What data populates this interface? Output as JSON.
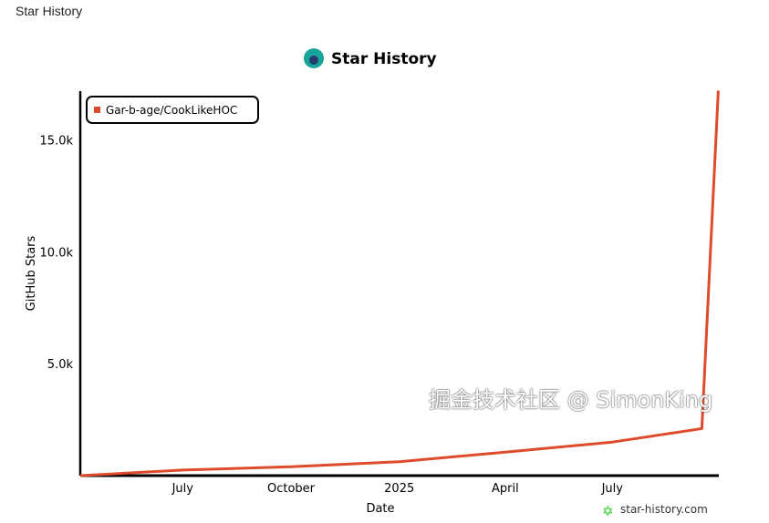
{
  "page": {
    "title": "Star History"
  },
  "watermark": "掘金技术社区 @ SimonKing",
  "brand": "star-history.com",
  "chart_data": {
    "type": "line",
    "title": "Star History",
    "xlabel": "Date",
    "ylabel": "GitHub Stars",
    "x_ticks": [
      "July",
      "October",
      "2025",
      "April",
      "July"
    ],
    "x_tick_dates": [
      "2024-07-01",
      "2024-10-01",
      "2025-01-01",
      "2025-04-01",
      "2025-07-01"
    ],
    "y_ticks": [
      5000,
      10000,
      15000
    ],
    "y_tick_labels": [
      "5.0k",
      "10.0k",
      "15.0k"
    ],
    "ylim": [
      0,
      17300
    ],
    "xlim": [
      "2024-04-05",
      "2025-10-01"
    ],
    "legend_position": "top-left",
    "grid": false,
    "series": [
      {
        "name": "Gar-b-age/CookLikeHOC",
        "color": "#dd4b2b",
        "x": [
          "2024-04-05",
          "2024-07-01",
          "2024-10-01",
          "2025-01-01",
          "2025-04-01",
          "2025-07-01",
          "2025-09-15",
          "2025-09-29"
        ],
        "y": [
          0,
          250,
          400,
          620,
          1050,
          1500,
          2100,
          17200
        ]
      }
    ]
  }
}
